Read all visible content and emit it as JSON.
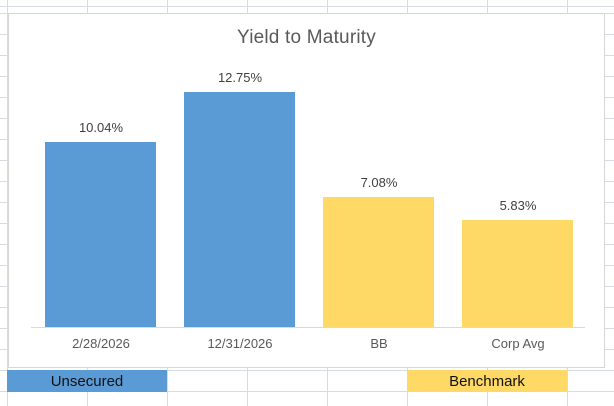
{
  "chart_data": {
    "type": "bar",
    "title": "Yield to Maturity",
    "categories": [
      "2/28/2026",
      "12/31/2026",
      "BB",
      "Corp Avg"
    ],
    "values": [
      10.04,
      12.75,
      7.08,
      5.83
    ],
    "data_labels": [
      "10.04%",
      "12.75%",
      "7.08%",
      "5.83%"
    ],
    "series": [
      {
        "name": "Unsecured",
        "color": "#5B9BD5",
        "category_indexes": [
          0,
          1
        ]
      },
      {
        "name": "Benchmark",
        "color": "#FFD966",
        "category_indexes": [
          2,
          3
        ]
      }
    ],
    "ylim": [
      0,
      14
    ],
    "y_axis_visible": false,
    "gridlines": false,
    "legend_position": "none",
    "title_color": "#595959",
    "data_label_color": "#404040",
    "axis_label_color": "#595959",
    "axis_line_color": "#d9d9d9"
  },
  "legend_cells": {
    "unsecured": {
      "label": "Unsecured",
      "fill": "#5B9BD5",
      "text_color": "#111111"
    },
    "benchmark": {
      "label": "Benchmark",
      "fill": "#FFD966",
      "text_color": "#111111"
    }
  }
}
